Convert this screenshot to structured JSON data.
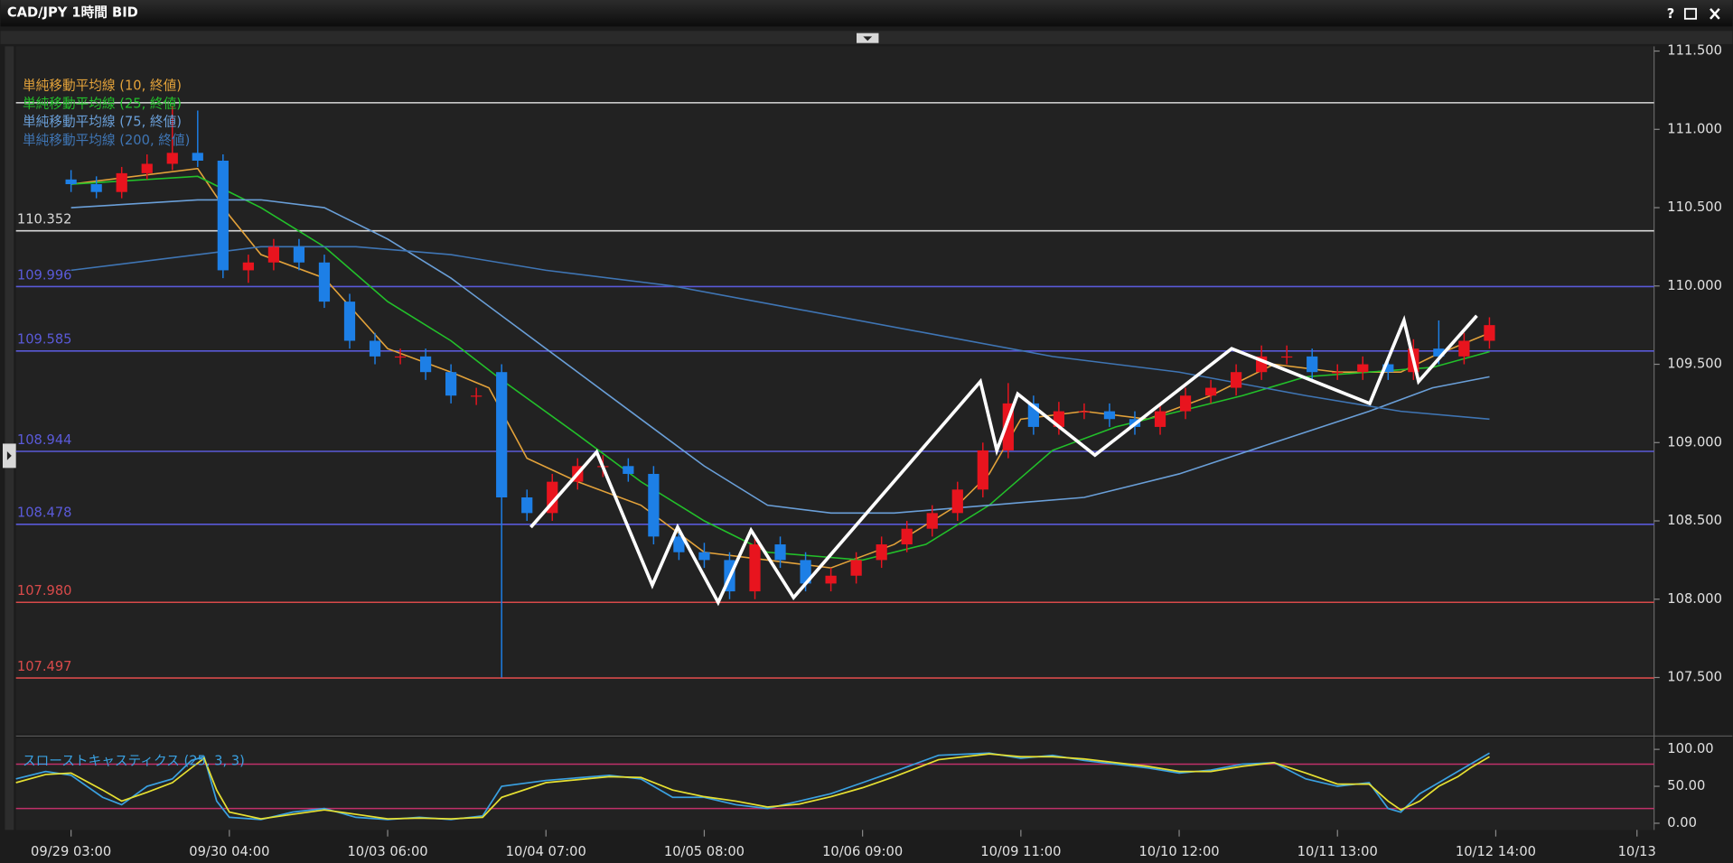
{
  "window": {
    "title": "CAD/JPY 1時間 BID",
    "help": "?"
  },
  "chart_data": [
    {
      "type": "candlestick",
      "xlim": [
        -8.7,
        250
      ],
      "ylim": [
        107.14,
        111.53
      ],
      "yticks": [
        {
          "value": 107.5,
          "label": "107.500"
        },
        {
          "value": 108,
          "label": "108.000"
        },
        {
          "value": 108.5,
          "label": "108.500"
        },
        {
          "value": 109,
          "label": "109.000"
        },
        {
          "value": 109.5,
          "label": "109.500"
        },
        {
          "value": 110,
          "label": "110.000"
        },
        {
          "value": 110.5,
          "label": "110.500"
        },
        {
          "value": 111,
          "label": "111.000"
        },
        {
          "value": 111.5,
          "label": "111.500"
        }
      ],
      "xticks": [
        {
          "value": 0,
          "label": "09/29 03:00"
        },
        {
          "value": 25,
          "label": "09/30 04:00"
        },
        {
          "value": 50,
          "label": "10/03 06:00"
        },
        {
          "value": 75,
          "label": "10/04 07:00"
        },
        {
          "value": 100,
          "label": "10/05 08:00"
        },
        {
          "value": 125,
          "label": "10/06 09:00"
        },
        {
          "value": 150,
          "label": "10/09 11:00"
        },
        {
          "value": 175,
          "label": "10/10 12:00"
        },
        {
          "value": 200,
          "label": "10/11 13:00"
        },
        {
          "value": 225,
          "label": "10/12 14:00"
        },
        {
          "value": 247.3,
          "label": "10/13"
        }
      ],
      "up_color": "#e8141e",
      "down_color": "#1d7fe6",
      "x": [
        0,
        4,
        8,
        12,
        16,
        20,
        24,
        28,
        32,
        36,
        40,
        44,
        48,
        52,
        56,
        60,
        64,
        68,
        72,
        76,
        80,
        84,
        88,
        92,
        96,
        100,
        104,
        108,
        112,
        116,
        120,
        124,
        128,
        132,
        136,
        140,
        144,
        148,
        152,
        156,
        160,
        164,
        168,
        172,
        176,
        180,
        184,
        188,
        192,
        196,
        200,
        204,
        208,
        212,
        216,
        220,
        224
      ],
      "open": [
        110.68,
        110.65,
        110.6,
        110.72,
        110.78,
        110.85,
        110.8,
        110.1,
        110.15,
        110.25,
        110.15,
        109.9,
        109.65,
        109.55,
        109.55,
        109.45,
        109.3,
        109.45,
        108.65,
        108.55,
        108.75,
        108.85,
        108.85,
        108.8,
        108.4,
        108.3,
        108.25,
        108.05,
        108.35,
        108.25,
        108.1,
        108.15,
        108.25,
        108.35,
        108.45,
        108.55,
        108.7,
        108.95,
        109.25,
        109.1,
        109.2,
        109.2,
        109.15,
        109.1,
        109.2,
        109.3,
        109.35,
        109.45,
        109.55,
        109.55,
        109.45,
        109.45,
        109.5,
        109.45,
        109.6,
        109.55,
        109.65
      ],
      "high": [
        110.74,
        110.7,
        110.76,
        110.84,
        111.15,
        111.12,
        110.84,
        110.2,
        110.3,
        110.3,
        110.2,
        109.95,
        109.7,
        109.6,
        109.6,
        109.5,
        109.35,
        109.5,
        108.7,
        108.8,
        108.9,
        108.92,
        108.9,
        108.85,
        108.45,
        108.36,
        108.3,
        108.4,
        108.4,
        108.3,
        108.2,
        108.3,
        108.4,
        108.5,
        108.6,
        108.75,
        109.0,
        109.38,
        109.3,
        109.26,
        109.25,
        109.25,
        109.2,
        109.25,
        109.35,
        109.4,
        109.5,
        109.62,
        109.62,
        109.6,
        109.5,
        109.55,
        109.55,
        109.66,
        109.78,
        109.7,
        109.8
      ],
      "low": [
        110.6,
        110.56,
        110.56,
        110.68,
        110.74,
        110.76,
        110.05,
        110.02,
        110.1,
        110.1,
        109.86,
        109.6,
        109.5,
        109.5,
        109.4,
        109.25,
        109.24,
        107.5,
        108.5,
        108.5,
        108.7,
        108.78,
        108.75,
        108.35,
        108.25,
        108.2,
        108.0,
        108.0,
        108.2,
        108.05,
        108.05,
        108.1,
        108.2,
        108.3,
        108.4,
        108.5,
        108.65,
        108.9,
        109.05,
        109.05,
        109.15,
        109.1,
        109.05,
        109.05,
        109.15,
        109.25,
        109.3,
        109.4,
        109.5,
        109.4,
        109.4,
        109.4,
        109.4,
        109.4,
        109.5,
        109.5,
        109.6
      ],
      "close": [
        110.65,
        110.6,
        110.72,
        110.78,
        110.85,
        110.8,
        110.1,
        110.15,
        110.25,
        110.15,
        109.9,
        109.65,
        109.55,
        109.55,
        109.45,
        109.3,
        109.3,
        108.65,
        108.55,
        108.75,
        108.85,
        108.85,
        108.8,
        108.4,
        108.3,
        108.25,
        108.05,
        108.35,
        108.25,
        108.1,
        108.15,
        108.25,
        108.35,
        108.45,
        108.55,
        108.7,
        108.95,
        109.25,
        109.1,
        109.2,
        109.2,
        109.15,
        109.1,
        109.2,
        109.3,
        109.35,
        109.45,
        109.55,
        109.55,
        109.45,
        109.45,
        109.5,
        109.45,
        109.6,
        109.55,
        109.65,
        109.75
      ],
      "series": [
        {
          "name": "単純移動平均線 (10, 終値)",
          "color": "#e3a23a",
          "x": [
            0,
            20,
            25,
            30,
            40,
            50,
            60,
            66,
            72,
            80,
            90,
            100,
            110,
            120,
            130,
            140,
            145,
            150,
            160,
            170,
            180,
            190,
            200,
            210,
            215,
            224
          ],
          "values": [
            110.65,
            110.75,
            110.45,
            110.2,
            110.05,
            109.6,
            109.45,
            109.35,
            108.9,
            108.75,
            108.6,
            108.3,
            108.25,
            108.2,
            108.35,
            108.6,
            108.8,
            109.15,
            109.2,
            109.15,
            109.3,
            109.5,
            109.45,
            109.45,
            109.55,
            109.7
          ]
        },
        {
          "name": "単純移動平均線 (25, 終値)",
          "color": "#22c02a",
          "x": [
            0,
            20,
            30,
            40,
            50,
            60,
            68,
            80,
            90,
            100,
            110,
            125,
            135,
            145,
            155,
            165,
            175,
            185,
            195,
            205,
            215,
            224
          ],
          "values": [
            110.65,
            110.7,
            110.5,
            110.25,
            109.9,
            109.65,
            109.4,
            109.05,
            108.75,
            108.5,
            108.3,
            108.25,
            108.35,
            108.6,
            108.95,
            109.1,
            109.2,
            109.3,
            109.42,
            109.45,
            109.48,
            109.58
          ]
        },
        {
          "name": "単純移動平均線 (75, 終値)",
          "color": "#6a9fd8",
          "x": [
            0,
            20,
            30,
            40,
            50,
            60,
            70,
            80,
            90,
            100,
            110,
            120,
            130,
            145,
            160,
            175,
            190,
            205,
            215,
            224
          ],
          "values": [
            110.5,
            110.55,
            110.55,
            110.5,
            110.3,
            110.05,
            109.75,
            109.45,
            109.15,
            108.85,
            108.6,
            108.55,
            108.55,
            108.6,
            108.65,
            108.8,
            109.0,
            109.2,
            109.35,
            109.42
          ]
        },
        {
          "name": "単純移動平均線 (200, 終値)",
          "color": "#3f75b4",
          "x": [
            0,
            20,
            30,
            45,
            60,
            75,
            95,
            115,
            135,
            155,
            175,
            195,
            210,
            224
          ],
          "values": [
            110.1,
            110.2,
            110.25,
            110.25,
            110.2,
            110.1,
            110.0,
            109.85,
            109.7,
            109.55,
            109.45,
            109.3,
            109.2,
            109.15
          ]
        }
      ],
      "zigzag": {
        "color": "#ffffff",
        "x": [
          72.6,
          83,
          91.8,
          95.8,
          102.2,
          107.4,
          114.1,
          143.6,
          146.2,
          149.5,
          161.7,
          183.3,
          205.1,
          210.5,
          212.8,
          222
        ],
        "values": [
          108.46,
          108.94,
          108.09,
          108.46,
          107.98,
          108.44,
          108.01,
          109.39,
          108.95,
          109.31,
          108.92,
          109.6,
          109.25,
          109.78,
          109.39,
          109.81
        ]
      },
      "levels": [
        {
          "value": 111.17,
          "color": "#c8c8c8"
        },
        {
          "value": 110.352,
          "label": "110.352",
          "color": "#d8d8d8"
        },
        {
          "value": 109.996,
          "label": "109.996",
          "color": "#5a5ad8"
        },
        {
          "value": 109.585,
          "label": "109.585",
          "color": "#5a5ad8"
        },
        {
          "value": 108.944,
          "label": "108.944",
          "color": "#5a5ad8"
        },
        {
          "value": 108.478,
          "label": "108.478",
          "color": "#5a5ad8"
        },
        {
          "value": 107.98,
          "label": "107.980",
          "color": "#d84a4a"
        },
        {
          "value": 107.497,
          "label": "107.497",
          "color": "#d84a4a"
        }
      ]
    },
    {
      "type": "line",
      "title": "スローストキャスティクス (25, 3, 3)",
      "xlim": [
        -8.7,
        250
      ],
      "ylim": [
        -9,
        115
      ],
      "yticks": [
        {
          "value": 0,
          "label": "0.00"
        },
        {
          "value": 50,
          "label": "50.00"
        },
        {
          "value": 100,
          "label": "100.00"
        }
      ],
      "hlines": [
        80,
        20
      ],
      "hline_color": "#c0306a",
      "series": [
        {
          "color": "#3aa0e0",
          "x": [
            -8.7,
            -4,
            0,
            5,
            8,
            12,
            16,
            19,
            21,
            23,
            25,
            30,
            35,
            40,
            45,
            50,
            55,
            60,
            65,
            68,
            75,
            85,
            90,
            95,
            100,
            105,
            110,
            115,
            120,
            125,
            130,
            137,
            145,
            150,
            155,
            160,
            165,
            170,
            175,
            180,
            185,
            190,
            195,
            200,
            205,
            208,
            210,
            213,
            216,
            219,
            221,
            224
          ],
          "values": [
            60,
            70,
            65,
            35,
            25,
            50,
            60,
            85,
            90,
            30,
            8,
            5,
            15,
            20,
            8,
            5,
            8,
            5,
            10,
            50,
            58,
            65,
            60,
            35,
            35,
            25,
            20,
            30,
            40,
            55,
            70,
            92,
            95,
            88,
            92,
            85,
            80,
            75,
            68,
            72,
            80,
            82,
            60,
            50,
            55,
            20,
            15,
            40,
            55,
            70,
            80,
            95
          ]
        },
        {
          "color": "#e6e032",
          "x": [
            -8.7,
            -4,
            0,
            5,
            8,
            12,
            16,
            19,
            21,
            23,
            25,
            30,
            35,
            40,
            45,
            50,
            55,
            60,
            65,
            68,
            75,
            85,
            90,
            95,
            100,
            105,
            110,
            115,
            120,
            125,
            130,
            137,
            145,
            150,
            155,
            160,
            165,
            170,
            175,
            180,
            185,
            190,
            195,
            200,
            205,
            208,
            210,
            213,
            216,
            219,
            221,
            224
          ],
          "values": [
            55,
            66,
            68,
            45,
            30,
            42,
            55,
            75,
            88,
            45,
            15,
            6,
            12,
            18,
            12,
            6,
            7,
            6,
            8,
            35,
            55,
            63,
            62,
            45,
            36,
            30,
            22,
            26,
            36,
            48,
            63,
            86,
            94,
            90,
            90,
            87,
            82,
            77,
            70,
            70,
            77,
            82,
            68,
            53,
            53,
            30,
            18,
            30,
            50,
            63,
            75,
            90
          ]
        }
      ]
    }
  ]
}
